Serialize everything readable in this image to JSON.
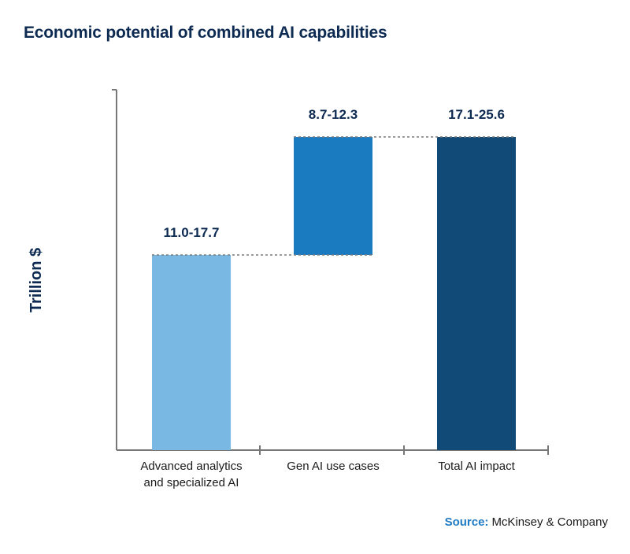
{
  "title": "Economic potential of combined AI capabilities",
  "source": {
    "label": "Source:",
    "text": "McKinsey & Company"
  },
  "chart_data": {
    "type": "bar",
    "subtype": "waterfall",
    "title": "Economic potential of combined AI capabilities",
    "ylabel": "Trillion $",
    "xlabel": "",
    "units": "Trillion $",
    "categories": [
      [
        "Advanced analytics",
        "and specialized AI"
      ],
      [
        "Gen AI use cases"
      ],
      [
        "Total AI impact"
      ]
    ],
    "bars": [
      {
        "base": 0,
        "low": 11.0,
        "high": 17.7,
        "label": "11.0-17.7",
        "kind": "increase",
        "color": "#7ab8e4"
      },
      {
        "low": 8.7,
        "high": 12.3,
        "label": "8.7-12.3",
        "kind": "increase",
        "color": "#1b7bc0"
      },
      {
        "low": 17.1,
        "high": 25.6,
        "label": "17.1-25.6",
        "kind": "total",
        "color": "#124a77"
      }
    ],
    "connectors": "dashed",
    "grid": false,
    "legend": "none"
  }
}
